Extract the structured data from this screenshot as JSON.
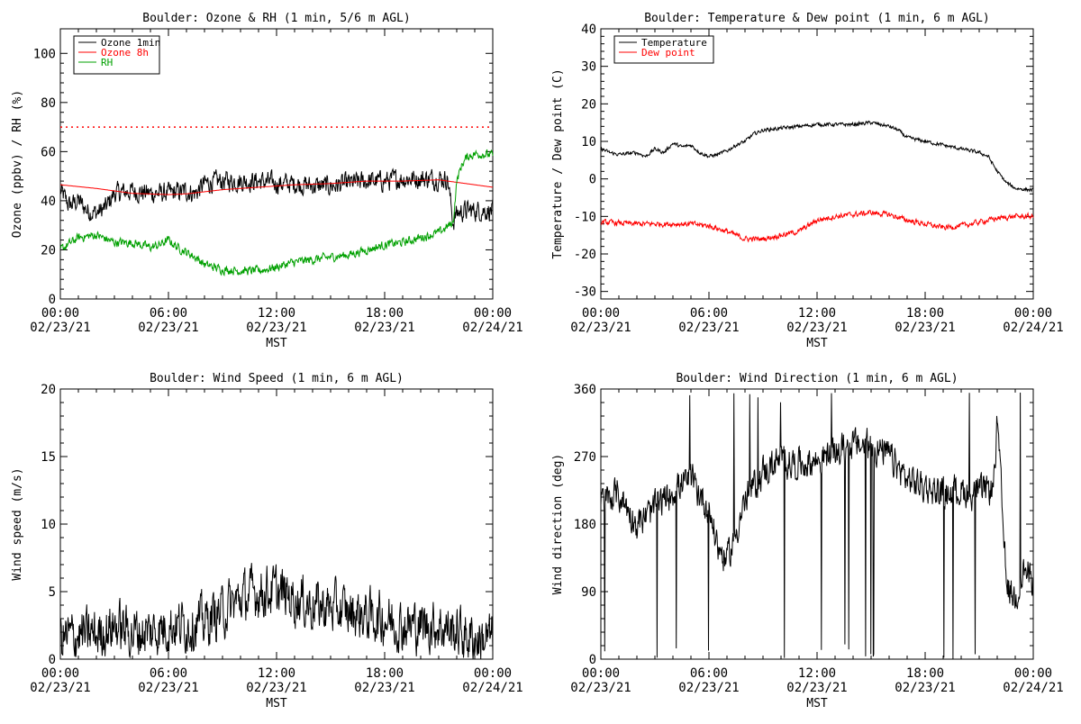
{
  "colors": {
    "black": "#000000",
    "red": "#ff0000",
    "green": "#00a000"
  },
  "x_ticks": [
    {
      "time": "00:00",
      "date": "02/23/21"
    },
    {
      "time": "06:00",
      "date": "02/23/21"
    },
    {
      "time": "12:00",
      "date": "02/23/21"
    },
    {
      "time": "18:00",
      "date": "02/23/21"
    },
    {
      "time": "00:00",
      "date": "02/24/21"
    }
  ],
  "chart_data": [
    {
      "type": "line",
      "title": "Boulder: Ozone & RH (1 min, 5/6 m AGL)",
      "ylabel": "Ozone (ppbv) / RH (%)",
      "xlabel": "MST",
      "xlim": [
        0,
        24
      ],
      "ylim": [
        0,
        110
      ],
      "yticks": [
        0,
        20,
        40,
        60,
        80,
        100
      ],
      "legend_position": "top-left",
      "reference_lines": [
        {
          "y": 70,
          "style": "dotted",
          "color": "#ff0000"
        }
      ],
      "series": [
        {
          "name": "Ozone 1min",
          "color": "#000000",
          "noise": 3.5,
          "x": [
            0,
            0.5,
            1,
            1.5,
            2,
            2.5,
            3,
            4,
            5,
            6,
            7,
            7.5,
            8,
            9,
            10,
            11,
            12,
            13,
            14,
            15,
            16,
            17,
            18,
            19,
            20,
            21,
            21.5,
            21.8,
            22,
            22.5,
            23,
            24
          ],
          "y": [
            44,
            38,
            40,
            36,
            35,
            37,
            43,
            44,
            43,
            43,
            44,
            43,
            47,
            48,
            48,
            48,
            47,
            47,
            46,
            46,
            47,
            48,
            48,
            49,
            49,
            49,
            49,
            31,
            35,
            36,
            36,
            36
          ]
        },
        {
          "name": "Ozone 8h",
          "color": "#ff0000",
          "noise": 0,
          "x": [
            0,
            2,
            4,
            6,
            7,
            9,
            11,
            13,
            15,
            17,
            19,
            21,
            22,
            24
          ],
          "y": [
            46.5,
            45,
            43,
            42.5,
            42.8,
            44.5,
            45.5,
            46.5,
            47,
            48,
            48,
            48.5,
            47.5,
            45.5
          ]
        },
        {
          "name": "RH",
          "color": "#00a000",
          "noise": 1.5,
          "x": [
            0,
            1,
            2,
            3,
            4,
            5,
            5.5,
            6,
            6.5,
            7,
            7.5,
            8,
            9,
            10,
            11,
            12,
            13,
            14,
            15,
            16,
            17,
            18,
            19,
            20,
            21,
            21.8,
            22,
            22.3,
            22.6,
            23,
            23.5,
            24
          ],
          "y": [
            20,
            25,
            26,
            23,
            23,
            21,
            22,
            24,
            21,
            19,
            17,
            14,
            12,
            11.5,
            11.5,
            13,
            15,
            16,
            17,
            18,
            20,
            22,
            23,
            25,
            27,
            31,
            48,
            55,
            58,
            59,
            59,
            58.5
          ]
        }
      ]
    },
    {
      "type": "line",
      "title": "Boulder: Temperature & Dew point (1 min, 6 m AGL)",
      "ylabel": "Temperature / Dew point (C)",
      "xlabel": "MST",
      "xlim": [
        0,
        24
      ],
      "ylim": [
        -32,
        40
      ],
      "yticks": [
        -30,
        -20,
        -10,
        0,
        10,
        20,
        30,
        40
      ],
      "legend_position": "top-left",
      "series": [
        {
          "name": "Temperature",
          "color": "#000000",
          "noise": 0.4,
          "x": [
            0,
            0.5,
            1,
            2,
            2.5,
            3,
            3.5,
            4,
            4.5,
            5,
            5.5,
            6,
            6.5,
            7,
            7.5,
            8,
            8.5,
            9,
            10,
            11,
            12,
            13,
            14,
            15,
            16,
            16.5,
            17,
            18,
            19,
            20,
            21,
            21.5,
            22,
            22.5,
            23,
            24
          ],
          "y": [
            8,
            7,
            6.5,
            7,
            6,
            8,
            7,
            9.5,
            8.5,
            9,
            7,
            6,
            6.5,
            7.5,
            9,
            10,
            12,
            13,
            13.5,
            14,
            14.5,
            14.5,
            14.5,
            15,
            14,
            13,
            11,
            10,
            9,
            8,
            7,
            6,
            2,
            -1,
            -2.5,
            -3
          ]
        },
        {
          "name": "Dew point",
          "color": "#ff0000",
          "noise": 0.6,
          "x": [
            0,
            2,
            4,
            5,
            6,
            7,
            8,
            9,
            10,
            11,
            12,
            13,
            14,
            15,
            16,
            17,
            18,
            19,
            20,
            21,
            22,
            23,
            24
          ],
          "y": [
            -11.5,
            -12,
            -12,
            -12,
            -12.5,
            -14,
            -16,
            -16,
            -15,
            -14,
            -11,
            -10,
            -9.5,
            -9,
            -9.5,
            -11,
            -12,
            -13,
            -12.5,
            -11.5,
            -10.5,
            -10,
            -10
          ]
        }
      ]
    },
    {
      "type": "line",
      "title": "Boulder: Wind Speed (1 min, 6 m AGL)",
      "ylabel": "Wind speed (m/s)",
      "xlabel": "MST",
      "xlim": [
        0,
        24
      ],
      "ylim": [
        0,
        20
      ],
      "yticks": [
        0,
        5,
        10,
        15,
        20
      ],
      "series": [
        {
          "name": "",
          "color": "#000000",
          "noise": 1.6,
          "floor": 0,
          "x": [
            0,
            1,
            2,
            3,
            4,
            5,
            6,
            7,
            8,
            9,
            10,
            11,
            12,
            13,
            14,
            15,
            16,
            17,
            18,
            19,
            20,
            21,
            22,
            23,
            24
          ],
          "y": [
            1.5,
            1.8,
            1.8,
            2.5,
            2,
            2,
            2.5,
            2.5,
            2.8,
            3.5,
            4.5,
            5,
            5,
            4.5,
            4,
            3.8,
            3.5,
            3.2,
            3,
            2.5,
            2.5,
            2.5,
            2,
            1.5,
            1.5
          ]
        }
      ]
    },
    {
      "type": "line",
      "title": "Boulder: Wind Direction (1 min, 6 m AGL)",
      "ylabel": "Wind direction (deg)",
      "xlabel": "MST",
      "xlim": [
        0,
        24
      ],
      "ylim": [
        0,
        360
      ],
      "yticks": [
        0,
        90,
        180,
        270,
        360
      ],
      "series": [
        {
          "name": "",
          "color": "#000000",
          "noise": 18,
          "floor": 0,
          "ceil": 360,
          "spikes": 0.02,
          "x": [
            0,
            1,
            2,
            3,
            4,
            5,
            6,
            6.5,
            7,
            8,
            9,
            10,
            11,
            12,
            13,
            14,
            15,
            16,
            17,
            18,
            19,
            20,
            21,
            21.8,
            22,
            22.5,
            23,
            23.5,
            24
          ],
          "y": [
            210,
            220,
            180,
            200,
            225,
            240,
            200,
            150,
            130,
            210,
            250,
            265,
            260,
            265,
            275,
            285,
            285,
            270,
            240,
            230,
            220,
            225,
            220,
            230,
            320,
            100,
            80,
            120,
            100
          ]
        }
      ]
    }
  ]
}
